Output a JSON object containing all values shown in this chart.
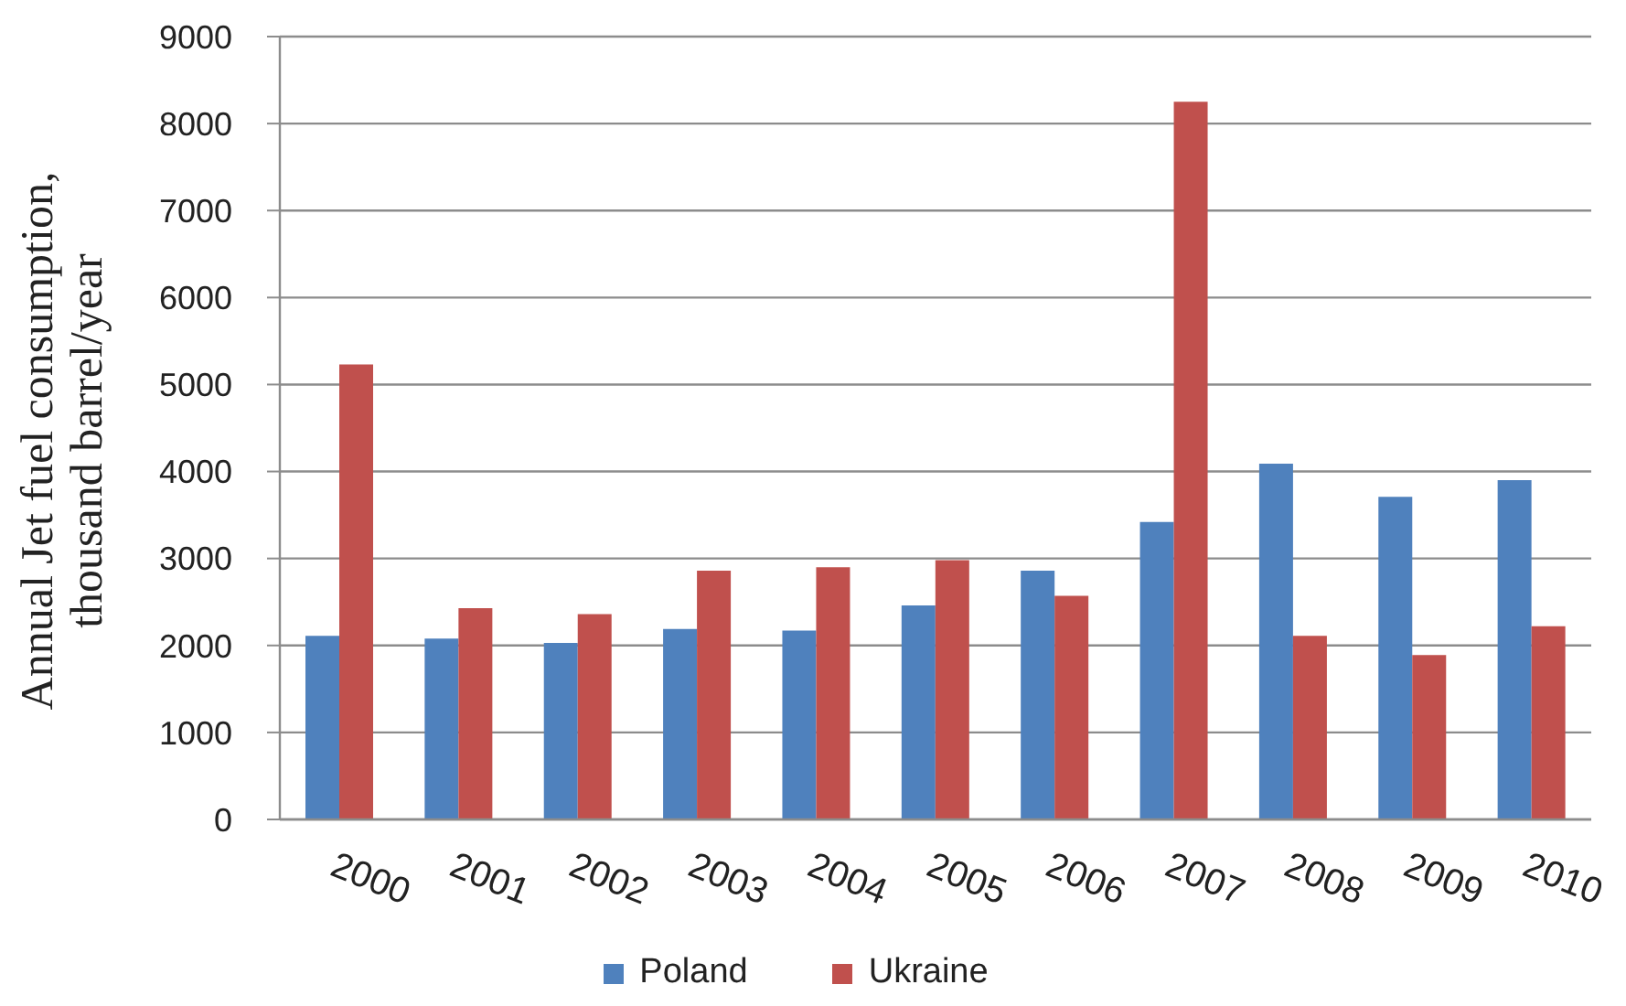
{
  "chart_data": {
    "type": "bar",
    "ylabel": "Annual Jet fuel consumption, thousand barrel/year",
    "categories": [
      "2000",
      "2001",
      "2002",
      "2003",
      "2004",
      "2005",
      "2006",
      "2007",
      "2008",
      "2009",
      "2010"
    ],
    "series": [
      {
        "name": "Poland",
        "color": "#4f81bd",
        "values": [
          2110,
          2080,
          2030,
          2190,
          2170,
          2460,
          2860,
          3420,
          4090,
          3710,
          3900
        ]
      },
      {
        "name": "Ukraine",
        "color": "#c0504d",
        "values": [
          5230,
          2430,
          2360,
          2860,
          2900,
          2980,
          2570,
          8250,
          2110,
          1890,
          2220
        ]
      }
    ],
    "ylim": [
      0,
      9000
    ],
    "yticks": [
      0,
      1000,
      2000,
      3000,
      4000,
      5000,
      6000,
      7000,
      8000,
      9000
    ],
    "grid": "y",
    "legend": "bottom"
  }
}
